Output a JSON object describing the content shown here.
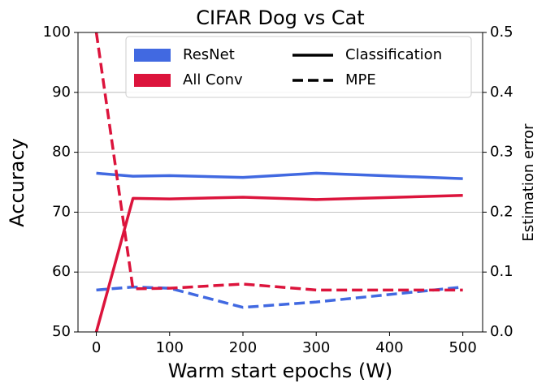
{
  "chart_data": {
    "type": "line",
    "title": "CIFAR Dog vs Cat",
    "xlabel": "Warm start epochs (W)",
    "ylabel": "Accuracy",
    "y2label": "Estimation error",
    "x": [
      0,
      50,
      100,
      200,
      300,
      500
    ],
    "xlim": [
      -25,
      527
    ],
    "xticks": [
      0,
      100,
      200,
      300,
      400,
      500
    ],
    "ylim": [
      50,
      100
    ],
    "yticks": [
      50,
      60,
      70,
      80,
      90,
      100
    ],
    "y2lim": [
      0,
      0.5
    ],
    "y2ticks": [
      {
        "value": 0,
        "label": "0.0"
      },
      0.1,
      0.2,
      0.3,
      0.4,
      0.5
    ],
    "grid": true,
    "models": [
      {
        "name": "ResNet",
        "color": "#4169e1"
      },
      {
        "name": "All Conv",
        "color": "#dc143c"
      }
    ],
    "styles": [
      {
        "name": "Classification",
        "dashed": false
      },
      {
        "name": "MPE",
        "dashed": true
      }
    ],
    "series": [
      {
        "model": 0,
        "style": 0,
        "axis": "y",
        "values": [
          76.5,
          76.0,
          76.1,
          75.8,
          76.5,
          75.6
        ]
      },
      {
        "model": 1,
        "style": 0,
        "axis": "y",
        "values": [
          50,
          72.3,
          72.2,
          72.5,
          72.1,
          72.8
        ]
      },
      {
        "model": 0,
        "style": 1,
        "axis": "y2",
        "values": [
          0.07,
          0.075,
          0.073,
          0.041,
          0.05,
          0.075
        ]
      },
      {
        "model": 1,
        "style": 1,
        "axis": "y2",
        "values": [
          0.5,
          0.072,
          0.073,
          0.08,
          0.07,
          0.07
        ]
      }
    ]
  }
}
